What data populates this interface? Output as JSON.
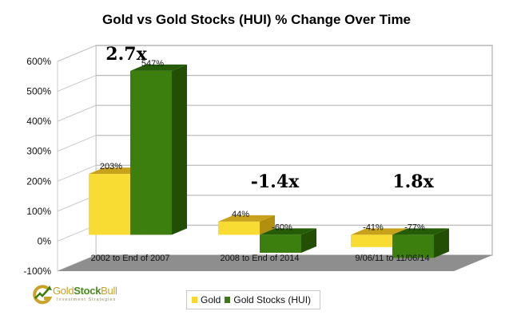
{
  "title": "Gold vs Gold Stocks (HUI) % Change Over Time",
  "colors": {
    "gold": "#f6d92f",
    "gold_stocks": "#3a7d0e"
  },
  "legend": {
    "items": [
      {
        "label": "Gold",
        "color": "#f6d92f"
      },
      {
        "label": "Gold Stocks (HUI)",
        "color": "#3a7d0e"
      }
    ]
  },
  "logo": {
    "name_part1": "Gold",
    "name_part2": "Stock",
    "name_part3": "Bull",
    "tagline": "Investment Strategies"
  },
  "annotations": [
    "2.7x",
    "-1.4x",
    "1.8x"
  ],
  "y_ticks": [
    "600%",
    "500%",
    "400%",
    "300%",
    "200%",
    "100%",
    "0%",
    "-100%"
  ],
  "chart_data": {
    "type": "bar",
    "title": "Gold vs Gold Stocks (HUI) % Change Over Time",
    "categories": [
      "2002 to End of 2007",
      "2008 to End of 2014",
      "9/06/11 to 11/06/14"
    ],
    "series": [
      {
        "name": "Gold",
        "values": [
          203,
          44,
          -41
        ],
        "labels": [
          "203%",
          "44%",
          "-41%"
        ],
        "color": "#f6d92f"
      },
      {
        "name": "Gold Stocks (HUI)",
        "values": [
          547,
          -60,
          -77
        ],
        "labels": [
          "547%",
          "-60%",
          "-77%"
        ],
        "color": "#3a7d0e"
      }
    ],
    "annotations": [
      "2.7x",
      "-1.4x",
      "1.8x"
    ],
    "xlabel": "",
    "ylabel": "",
    "ylim": [
      -100,
      600
    ],
    "y_tick_step": 100,
    "grid": true,
    "legend_position": "bottom",
    "style": "3d clustered column"
  }
}
